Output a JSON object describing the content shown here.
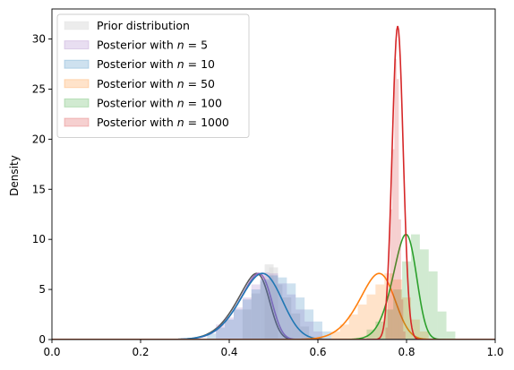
{
  "chart_data": {
    "type": "area",
    "title": "",
    "xlabel": "",
    "ylabel": "Density",
    "xlim": [
      0.0,
      1.0
    ],
    "ylim": [
      0,
      33
    ],
    "xticks": [
      "0.0",
      "0.2",
      "0.4",
      "0.6",
      "0.8",
      "1.0"
    ],
    "yticks": [
      "0",
      "5",
      "10",
      "15",
      "20",
      "25",
      "30"
    ],
    "grid": false,
    "legend_position": "top-left",
    "series": [
      {
        "name": "Prior distribution",
        "label_prefix": "Prior distribution",
        "n": "",
        "color": "#595959",
        "fill": "#d9d9d9",
        "kde": {
          "mean": 0.49,
          "sd": 0.06,
          "skew": -3.0,
          "peak": 6.6
        },
        "bins": [
          [
            0.44,
            3.0
          ],
          [
            0.46,
            4.6
          ],
          [
            0.48,
            5.8
          ],
          [
            0.49,
            7.5
          ],
          [
            0.5,
            7.2
          ],
          [
            0.51,
            5.5
          ],
          [
            0.53,
            4.2
          ],
          [
            0.55,
            2.6
          ],
          [
            0.57,
            1.3
          ]
        ]
      },
      {
        "name": "Posterior with n = 5",
        "label_prefix": "Posterior with ",
        "n": "5",
        "color": "#9467bd",
        "fill": "#9467bd",
        "kde": {
          "mean": 0.495,
          "sd": 0.06,
          "skew": -3.0,
          "peak": 6.6
        },
        "bins": [
          [
            0.38,
            1.5
          ],
          [
            0.4,
            2.2
          ],
          [
            0.42,
            3.2
          ],
          [
            0.44,
            4.2
          ],
          [
            0.46,
            5.5
          ],
          [
            0.48,
            6.7
          ],
          [
            0.5,
            6.6
          ],
          [
            0.52,
            5.6
          ],
          [
            0.54,
            4.5
          ],
          [
            0.56,
            3.0
          ],
          [
            0.58,
            1.8
          ],
          [
            0.6,
            0.8
          ]
        ]
      },
      {
        "name": "Posterior with n = 10",
        "label_prefix": "Posterior with ",
        "n": "10",
        "color": "#1f77b4",
        "fill": "#1f77b4",
        "kde": {
          "mean": 0.51,
          "sd": 0.065,
          "skew": -1.5,
          "peak": 6.6
        },
        "bins": [
          [
            0.36,
            0.6
          ],
          [
            0.38,
            1.2
          ],
          [
            0.4,
            2.0
          ],
          [
            0.42,
            3.0
          ],
          [
            0.44,
            4.0
          ],
          [
            0.46,
            5.0
          ],
          [
            0.48,
            6.0
          ],
          [
            0.5,
            6.4
          ],
          [
            0.52,
            6.2
          ],
          [
            0.54,
            5.6
          ],
          [
            0.56,
            4.2
          ],
          [
            0.58,
            3.0
          ],
          [
            0.6,
            1.8
          ],
          [
            0.62,
            0.8
          ]
        ]
      },
      {
        "name": "Posterior with n = 50",
        "label_prefix": "Posterior with ",
        "n": "50",
        "color": "#ff7f0e",
        "fill": "#ff7f0e",
        "kde": {
          "mean": 0.77,
          "sd": 0.06,
          "skew": -2.0,
          "peak": 6.6
        },
        "bins": [
          [
            0.64,
            0.8
          ],
          [
            0.66,
            1.5
          ],
          [
            0.68,
            2.5
          ],
          [
            0.7,
            3.5
          ],
          [
            0.72,
            4.5
          ],
          [
            0.74,
            5.5
          ],
          [
            0.76,
            6.6
          ],
          [
            0.78,
            6.0
          ],
          [
            0.8,
            4.2
          ],
          [
            0.82,
            2.0
          ],
          [
            0.84,
            0.8
          ]
        ]
      },
      {
        "name": "Posterior with n = 100",
        "label_prefix": "Posterior with ",
        "n": "100",
        "color": "#2ca02c",
        "fill": "#2ca02c",
        "kde": {
          "mean": 0.82,
          "sd": 0.04,
          "skew": -2.0,
          "peak": 10.5
        },
        "bins": [
          [
            0.72,
            1.0
          ],
          [
            0.74,
            1.8
          ],
          [
            0.76,
            3.0
          ],
          [
            0.78,
            5.0
          ],
          [
            0.8,
            7.8
          ],
          [
            0.82,
            10.5
          ],
          [
            0.84,
            9.0
          ],
          [
            0.86,
            6.8
          ],
          [
            0.88,
            2.8
          ],
          [
            0.9,
            0.8
          ]
        ]
      },
      {
        "name": "Posterior with n = 1000",
        "label_prefix": "Posterior with ",
        "n": "1000",
        "color": "#d62728",
        "fill": "#d62728",
        "kde": {
          "mean": 0.78,
          "sd": 0.0125,
          "skew": 0.0,
          "peak": 31.3
        },
        "bins": [
          [
            0.755,
            1.2
          ],
          [
            0.76,
            4.5
          ],
          [
            0.765,
            13.0
          ],
          [
            0.77,
            19.0
          ],
          [
            0.775,
            28.0
          ],
          [
            0.78,
            26.0
          ],
          [
            0.785,
            12.0
          ],
          [
            0.79,
            4.0
          ],
          [
            0.795,
            0.8
          ]
        ]
      }
    ]
  }
}
